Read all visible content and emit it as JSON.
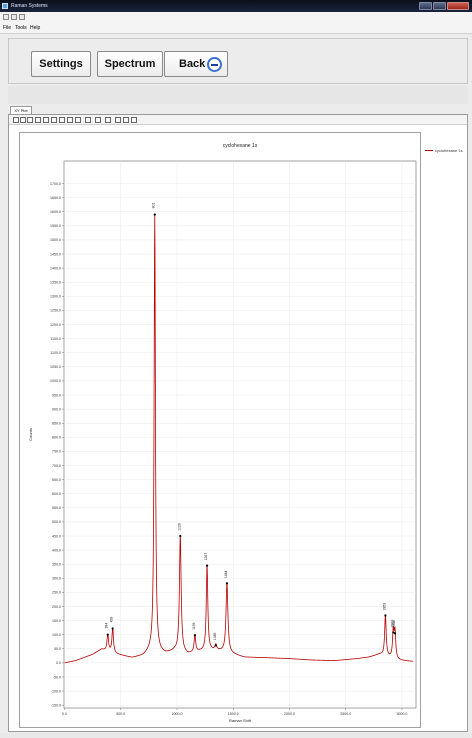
{
  "window": {
    "title": "Raman Systems",
    "menu": [
      "File",
      "Tools",
      "Help"
    ]
  },
  "toolbar": {
    "settings_label": "Settings",
    "spectrum_label": "Spectrum",
    "back_label": "Back"
  },
  "tabs": [
    {
      "label": "XY Plot"
    }
  ],
  "icons": {
    "back": "back-arrow-icon",
    "plot_toolbar": [
      "first-icon",
      "prev-icon",
      "pause-icon",
      "grid-icon",
      "cursor-icon",
      "zoom-in-icon",
      "zoom-out-icon",
      "fit-icon",
      "select-icon",
      "xy-icon",
      "copy-icon",
      "paste-icon",
      "save-icon",
      "print-icon",
      "print-preview-icon"
    ]
  },
  "colors": {
    "series": "#b80000",
    "marker": "#000000",
    "back_ring": "#3a6fd8"
  },
  "chart_data": {
    "type": "line",
    "title": "cyclohexane 1s",
    "xlabel": "Raman Shift",
    "ylabel": "Counts",
    "xlim": [
      -5,
      3125
    ],
    "ylim": [
      -160,
      1780
    ],
    "xticks": [
      0,
      500,
      1000,
      1500,
      2000,
      2500,
      3000
    ],
    "xtick_labels": [
      "0.0",
      "500.0",
      "1000.0",
      "1500.0",
      "2000.0",
      "2500.0",
      "3000.0"
    ],
    "yticks": [
      -150,
      -100,
      -50,
      0,
      50,
      100,
      150,
      200,
      250,
      300,
      350,
      400,
      450,
      500,
      550,
      600,
      650,
      700,
      750,
      800,
      850,
      900,
      950,
      1000,
      1050,
      1100,
      1150,
      1200,
      1250,
      1300,
      1350,
      1400,
      1450,
      1500,
      1550,
      1600,
      1650,
      1700
    ],
    "ytick_labels": [
      "-150.0",
      "-100.0",
      "-50.0",
      "0.0",
      "50.0",
      "100.0",
      "150.0",
      "200.0",
      "250.0",
      "300.0",
      "350.0",
      "400.0",
      "450.0",
      "500.0",
      "550.0",
      "600.0",
      "650.0",
      "700.0",
      "750.0",
      "800.0",
      "850.0",
      "900.0",
      "950.0",
      "1000.0",
      "1050.0",
      "1100.0",
      "1150.0",
      "1200.0",
      "1250.0",
      "1300.0",
      "1350.0",
      "1400.0",
      "1450.0",
      "1500.0",
      "1550.0",
      "1600.0",
      "1650.0",
      "1700.0"
    ],
    "grid": true,
    "legend": "right",
    "series": [
      {
        "name": "cyclohexane 1s",
        "baseline": [
          [
            0,
            0
          ],
          [
            100,
            8
          ],
          [
            250,
            30
          ],
          [
            330,
            48
          ],
          [
            450,
            32
          ],
          [
            600,
            18
          ],
          [
            700,
            25
          ],
          [
            760,
            40
          ],
          [
            900,
            32
          ],
          [
            980,
            42
          ],
          [
            1100,
            30
          ],
          [
            1200,
            40
          ],
          [
            1350,
            45
          ],
          [
            1500,
            30
          ],
          [
            1600,
            20
          ],
          [
            1800,
            18
          ],
          [
            2000,
            15
          ],
          [
            2200,
            10
          ],
          [
            2400,
            8
          ],
          [
            2600,
            15
          ],
          [
            2700,
            20
          ],
          [
            2800,
            30
          ],
          [
            2950,
            10
          ],
          [
            3100,
            5
          ]
        ]
      }
    ],
    "peaks": [
      {
        "x": 384,
        "y": 100,
        "label": "384"
      },
      {
        "x": 428,
        "y": 122,
        "label": "428"
      },
      {
        "x": 802,
        "y": 1590,
        "label": "802"
      },
      {
        "x": 1029,
        "y": 450,
        "label": "1029"
      },
      {
        "x": 1159,
        "y": 98,
        "label": "1159"
      },
      {
        "x": 1267,
        "y": 345,
        "label": "1267"
      },
      {
        "x": 1345,
        "y": 62,
        "label": "1345"
      },
      {
        "x": 1444,
        "y": 282,
        "label": "1444"
      },
      {
        "x": 2853,
        "y": 168,
        "label": "2853"
      },
      {
        "x": 2923,
        "y": 108,
        "label": "2923"
      },
      {
        "x": 2938,
        "y": 105,
        "label": "2938"
      }
    ]
  }
}
